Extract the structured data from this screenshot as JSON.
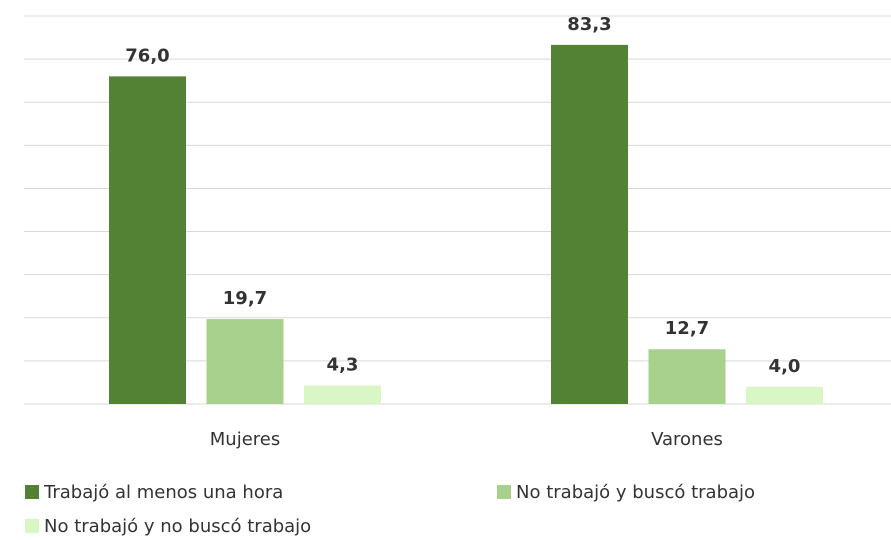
{
  "chart_data": {
    "type": "bar",
    "categories": [
      "Mujeres",
      "Varones"
    ],
    "series": [
      {
        "name": "Trabajó al menos una hora",
        "color": "#548235",
        "values": [
          76.0,
          83.3
        ],
        "value_labels": [
          "76,0",
          "83,3"
        ]
      },
      {
        "name": "No trabajó y buscó trabajo",
        "color": "#a9d18e",
        "values": [
          19.7,
          12.7
        ],
        "value_labels": [
          "19,7",
          "12,7"
        ]
      },
      {
        "name": "No trabajó y no buscó trabajo",
        "color": "#d9f7c4",
        "values": [
          4.3,
          4.0
        ],
        "value_labels": [
          "4,3",
          "4,0"
        ]
      }
    ],
    "ylim": [
      0,
      90
    ],
    "yticks": [
      0,
      10,
      20,
      30,
      40,
      50,
      60,
      70,
      80,
      90
    ],
    "grid": true,
    "legend": "bottom-left"
  }
}
